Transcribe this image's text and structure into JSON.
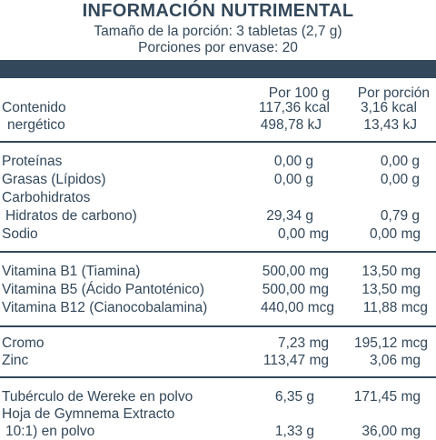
{
  "header": {
    "title": "INFORMACIÓN NUTRIMENTAL",
    "serving_size": "Tamaño de la porción: 3 tabletas (2,7 g)",
    "servings": "Porciones por envase: 20"
  },
  "columns": {
    "per100": "Por 100 g",
    "per_serving": "Por porción"
  },
  "energy": {
    "label_line1": "Contenido",
    "label_line2": "nergético",
    "kcal_100": "117,36 kcal",
    "kcal_serv": "3,16 kcal",
    "kj_100": "498,78 kJ",
    "kj_serv": "13,43 kJ"
  },
  "macros": [
    {
      "label": "Proteínas",
      "v100": "0,00 g",
      "vserv": "0,00 g"
    },
    {
      "label": "Grasas (Lípidos)",
      "v100": "0,00 g",
      "vserv": "0,00 g"
    },
    {
      "label": "Carbohidratos",
      "v100": "",
      "vserv": ""
    },
    {
      "label": "Hidratos de carbono)",
      "v100": "29,34 g",
      "vserv": "0,79 g"
    },
    {
      "label": "Sodio",
      "v100": "0,00 mg",
      "vserv": "0,00 mg"
    }
  ],
  "vitamins": [
    {
      "label": "Vitamina B1 (Tiamina)",
      "v100": "500,00 mg",
      "vserv": "13,50 mg"
    },
    {
      "label": "Vitamina B5 (Ácido Pantoténico)",
      "v100": "500,00 mg",
      "vserv": "13,50 mg"
    },
    {
      "label": "Vitamina B12 (Cianocobalamina)",
      "v100": "440,00 mcg",
      "vserv": "11,88 mcg"
    }
  ],
  "minerals": [
    {
      "label": "Cromo",
      "v100": "7,23 mg",
      "vserv": "195,12 mcg"
    },
    {
      "label": "Zinc",
      "v100": "113,47 mg",
      "vserv": "3,06 mg"
    }
  ],
  "extracts": [
    {
      "label": "Tubérculo de Wereke en polvo",
      "v100": "6,35 g",
      "vserv": "171,45 mg"
    },
    {
      "label": "Hoja de Gymnema Extracto",
      "v100": "",
      "vserv": ""
    },
    {
      "label": "10:1) en polvo",
      "v100": "1,33 g",
      "vserv": "36,00 mg"
    }
  ]
}
